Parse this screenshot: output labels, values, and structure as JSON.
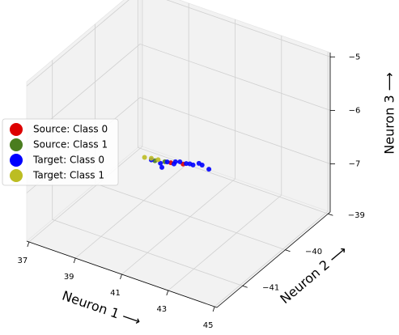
{
  "chart_data": {
    "type": "scatter3d",
    "xlabel": "Neuron 1 ⟶",
    "ylabel": "Neuron 2 ⟶",
    "zlabel": "Neuron 3 ⟶",
    "xlim": [
      36.9,
      45.1
    ],
    "ylim": [
      -41.6,
      -38.95
    ],
    "zlim": [
      -7.9,
      -4.92
    ],
    "xticks": [
      37,
      39,
      41,
      43,
      45
    ],
    "yticks": [
      {
        "value": -41,
        "label": "−41"
      },
      {
        "value": -40,
        "label": "−40"
      },
      {
        "value": -39,
        "label": "−39"
      }
    ],
    "zticks": [
      {
        "value": -7,
        "label": "−7"
      },
      {
        "value": -6,
        "label": "−6"
      },
      {
        "value": -5,
        "label": "−5"
      }
    ],
    "grid": true,
    "legend": "left",
    "series": [
      {
        "name": "Source: Class 0",
        "color": "#dd0000",
        "x": [
          40.2,
          40.6
        ],
        "y": [
          -40.02,
          -39.95
        ],
        "z": [
          -7.0,
          -7.01
        ]
      },
      {
        "name": "Source: Class 1",
        "color": "#4a7d1f",
        "x": [
          39.7,
          40.0
        ],
        "y": [
          -40.12,
          -40.05
        ],
        "z": [
          -6.97,
          -6.99
        ]
      },
      {
        "name": "Target: Class 0",
        "color": "#0000ff",
        "x": [
          39.6,
          39.9,
          40.1,
          40.3,
          40.5,
          40.7,
          40.9,
          41.1,
          40.0,
          40.4,
          40.8,
          41.2,
          41.4
        ],
        "y": [
          -40.15,
          -40.1,
          -40.05,
          -40.0,
          -39.97,
          -39.93,
          -39.88,
          -39.85,
          -40.12,
          -40.02,
          -39.9,
          -39.83,
          -39.78
        ],
        "z": [
          -6.95,
          -7.0,
          -6.98,
          -7.02,
          -6.97,
          -7.0,
          -7.03,
          -6.99,
          -7.05,
          -6.95,
          -7.01,
          -7.02,
          -7.1
        ]
      },
      {
        "name": "Target: Class 1",
        "color": "#bcbd22",
        "x": [
          39.4,
          39.6,
          39.8
        ],
        "y": [
          -40.2,
          -40.15,
          -40.1
        ],
        "z": [
          -6.9,
          -6.92,
          -6.95
        ]
      }
    ]
  }
}
